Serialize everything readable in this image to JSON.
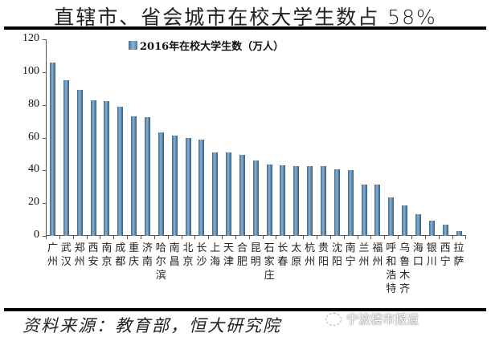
{
  "title": "直辖市、省会城市在校大学生数占 58%",
  "source": "资料来源：教育部，恒大研究院",
  "watermark": "宁波楼市报道",
  "chart_data": {
    "type": "bar",
    "title": "直辖市、省会城市在校大学生数占 58%",
    "legend": [
      "2016年在校大学生数（万人）"
    ],
    "legend_position": "top",
    "xlabel": "",
    "ylabel": "",
    "ylim": [
      0,
      120
    ],
    "yticks": [
      0,
      20,
      40,
      60,
      80,
      100,
      120
    ],
    "grid": false,
    "categories": [
      "广州",
      "武汉",
      "郑州",
      "西安",
      "南京",
      "成都",
      "重庆",
      "济南",
      "哈尔滨",
      "南昌",
      "北京",
      "长沙",
      "上海",
      "天津",
      "合肥",
      "昆明",
      "石家庄",
      "长春",
      "太原",
      "杭州",
      "贵阳",
      "沈阳",
      "南宁",
      "兰州",
      "福州",
      "呼和浩特",
      "乌鲁木齐",
      "海口",
      "银川",
      "西宁",
      "拉萨"
    ],
    "series": [
      {
        "name": "2016年在校大学生数（万人）",
        "color": "#4f7ea6",
        "values": [
          106,
          95,
          89,
          83,
          82.5,
          79,
          73,
          72.5,
          63,
          61,
          60,
          59,
          51,
          51,
          49.5,
          46,
          43.5,
          43,
          42.5,
          42.5,
          42.5,
          40.5,
          40,
          31.5,
          31.5,
          23.5,
          18.5,
          13,
          9.5,
          7,
          3
        ]
      }
    ]
  }
}
